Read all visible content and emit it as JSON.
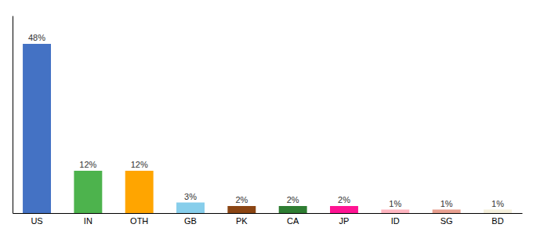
{
  "chart_data": {
    "type": "bar",
    "categories": [
      "US",
      "IN",
      "OTH",
      "GB",
      "PK",
      "CA",
      "JP",
      "ID",
      "SG",
      "BD"
    ],
    "values": [
      48,
      12,
      12,
      3,
      2,
      2,
      2,
      1,
      1,
      1
    ],
    "value_labels": [
      "48%",
      "12%",
      "12%",
      "3%",
      "2%",
      "2%",
      "2%",
      "1%",
      "1%",
      "1%"
    ],
    "data_labels": true,
    "colors": [
      "#4472C4",
      "#4DB34D",
      "#FFA500",
      "#87CEEB",
      "#8B4513",
      "#2E7D32",
      "#FF1493",
      "#FFB6C1",
      "#E8A090",
      "#F5F0DC"
    ],
    "ylim": [
      0,
      56
    ],
    "tick_labels": "x",
    "grid": false
  }
}
